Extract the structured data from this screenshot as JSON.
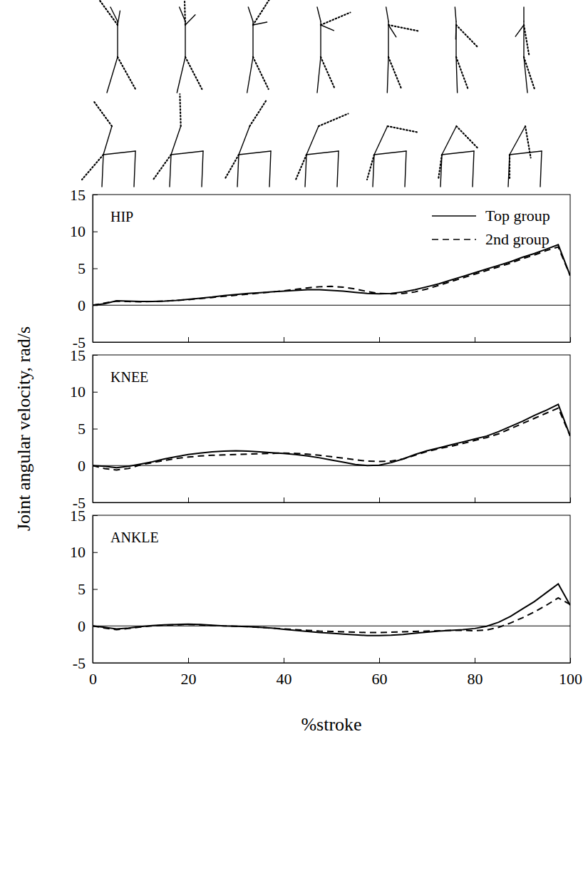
{
  "chart_data": [
    {
      "type": "line",
      "title": "HIP",
      "legend": "upper right",
      "tick_labels": "y",
      "x": [
        0,
        2.5,
        5,
        7.5,
        10,
        12.5,
        15,
        17.5,
        20,
        22.5,
        25,
        27.5,
        30,
        32.5,
        35,
        37.5,
        40,
        42.5,
        45,
        47.5,
        50,
        52.5,
        55,
        57.5,
        60,
        62.5,
        65,
        67.5,
        70,
        72.5,
        75,
        77.5,
        80,
        82.5,
        85,
        87.5,
        90,
        92.5,
        95,
        97.5,
        100
      ],
      "xlim": [
        0,
        100
      ],
      "xticks": [
        0,
        20,
        40,
        60,
        80,
        100
      ],
      "ylim": [
        -5,
        15
      ],
      "yticks": [
        -5,
        0,
        5,
        10,
        15
      ],
      "series": [
        {
          "name": "Top group",
          "color": "#000000",
          "line_style": "solid",
          "values": [
            0,
            0.2,
            0.6,
            0.55,
            0.5,
            0.5,
            0.55,
            0.65,
            0.8,
            0.95,
            1.1,
            1.3,
            1.45,
            1.6,
            1.7,
            1.8,
            1.9,
            2.0,
            2.1,
            2.1,
            2.0,
            1.9,
            1.75,
            1.6,
            1.55,
            1.6,
            1.8,
            2.1,
            2.5,
            2.9,
            3.4,
            3.9,
            4.4,
            4.9,
            5.4,
            5.9,
            6.5,
            7.0,
            7.6,
            8.2,
            4.0
          ]
        },
        {
          "name": "2nd group",
          "color": "#000000",
          "line_style": "dashed",
          "values": [
            0,
            0.3,
            0.55,
            0.5,
            0.45,
            0.5,
            0.55,
            0.65,
            0.75,
            0.9,
            1.05,
            1.2,
            1.35,
            1.5,
            1.65,
            1.8,
            1.95,
            2.15,
            2.35,
            2.5,
            2.55,
            2.45,
            2.2,
            1.85,
            1.6,
            1.55,
            1.6,
            1.8,
            2.2,
            2.7,
            3.2,
            3.7,
            4.2,
            4.7,
            5.2,
            5.7,
            6.3,
            6.8,
            7.4,
            7.9,
            4.0
          ]
        }
      ]
    },
    {
      "type": "line",
      "title": "KNEE",
      "tick_labels": "y",
      "y_label": "Joint angular velocity, rad/s",
      "x": [
        0,
        2.5,
        5,
        7.5,
        10,
        12.5,
        15,
        17.5,
        20,
        22.5,
        25,
        27.5,
        30,
        32.5,
        35,
        37.5,
        40,
        42.5,
        45,
        47.5,
        50,
        52.5,
        55,
        57.5,
        60,
        62.5,
        65,
        67.5,
        70,
        72.5,
        75,
        77.5,
        80,
        82.5,
        85,
        87.5,
        90,
        92.5,
        95,
        97.5,
        100
      ],
      "xlim": [
        0,
        100
      ],
      "xticks": [
        0,
        20,
        40,
        60,
        80,
        100
      ],
      "ylim": [
        -5,
        15
      ],
      "yticks": [
        -5,
        0,
        5,
        10,
        15
      ],
      "series": [
        {
          "color": "#000000",
          "line_style": "solid",
          "values": [
            0,
            -0.1,
            -0.3,
            -0.1,
            0.2,
            0.5,
            0.9,
            1.2,
            1.5,
            1.7,
            1.85,
            1.95,
            2.0,
            1.95,
            1.85,
            1.75,
            1.65,
            1.5,
            1.3,
            1.05,
            0.75,
            0.45,
            0.15,
            0.0,
            0.05,
            0.4,
            0.9,
            1.5,
            2.0,
            2.4,
            2.8,
            3.2,
            3.6,
            4.0,
            4.6,
            5.3,
            6.0,
            6.8,
            7.5,
            8.3,
            4.0
          ]
        },
        {
          "color": "#000000",
          "line_style": "dashed",
          "values": [
            0,
            -0.4,
            -0.6,
            -0.4,
            0.1,
            0.4,
            0.7,
            0.95,
            1.15,
            1.3,
            1.4,
            1.45,
            1.5,
            1.55,
            1.6,
            1.65,
            1.7,
            1.65,
            1.55,
            1.4,
            1.2,
            1.0,
            0.8,
            0.6,
            0.55,
            0.6,
            0.9,
            1.4,
            1.9,
            2.3,
            2.6,
            3.0,
            3.4,
            3.8,
            4.3,
            5.0,
            5.7,
            6.4,
            7.1,
            7.8,
            4.0
          ]
        }
      ]
    },
    {
      "type": "line",
      "title": "ANKLE",
      "x_label": "%stroke",
      "x": [
        0,
        2.5,
        5,
        7.5,
        10,
        12.5,
        15,
        17.5,
        20,
        22.5,
        25,
        27.5,
        30,
        32.5,
        35,
        37.5,
        40,
        42.5,
        45,
        47.5,
        50,
        52.5,
        55,
        57.5,
        60,
        62.5,
        65,
        67.5,
        70,
        72.5,
        75,
        77.5,
        80,
        82.5,
        85,
        87.5,
        90,
        92.5,
        95,
        97.5,
        100
      ],
      "xlim": [
        0,
        100
      ],
      "xticks": [
        0,
        20,
        40,
        60,
        80,
        100
      ],
      "ylim": [
        -5,
        15
      ],
      "yticks": [
        -5,
        0,
        5,
        10,
        15
      ],
      "series": [
        {
          "color": "#000000",
          "line_style": "solid",
          "values": [
            0,
            -0.2,
            -0.4,
            -0.3,
            -0.1,
            0.05,
            0.15,
            0.2,
            0.25,
            0.2,
            0.1,
            0.0,
            -0.05,
            -0.1,
            -0.2,
            -0.3,
            -0.45,
            -0.6,
            -0.75,
            -0.9,
            -1.0,
            -1.1,
            -1.2,
            -1.3,
            -1.3,
            -1.25,
            -1.15,
            -1.0,
            -0.85,
            -0.7,
            -0.6,
            -0.5,
            -0.35,
            -0.05,
            0.5,
            1.3,
            2.3,
            3.3,
            4.5,
            5.7,
            2.8
          ]
        },
        {
          "color": "#000000",
          "line_style": "dashed",
          "values": [
            0,
            -0.3,
            -0.5,
            -0.35,
            -0.15,
            0.0,
            0.1,
            0.15,
            0.2,
            0.15,
            0.05,
            0.0,
            -0.05,
            -0.1,
            -0.2,
            -0.3,
            -0.4,
            -0.5,
            -0.6,
            -0.7,
            -0.75,
            -0.8,
            -0.85,
            -0.9,
            -0.9,
            -0.85,
            -0.8,
            -0.75,
            -0.7,
            -0.65,
            -0.6,
            -0.6,
            -0.65,
            -0.55,
            -0.2,
            0.4,
            1.1,
            1.9,
            2.8,
            3.8,
            2.9
          ]
        }
      ]
    }
  ]
}
